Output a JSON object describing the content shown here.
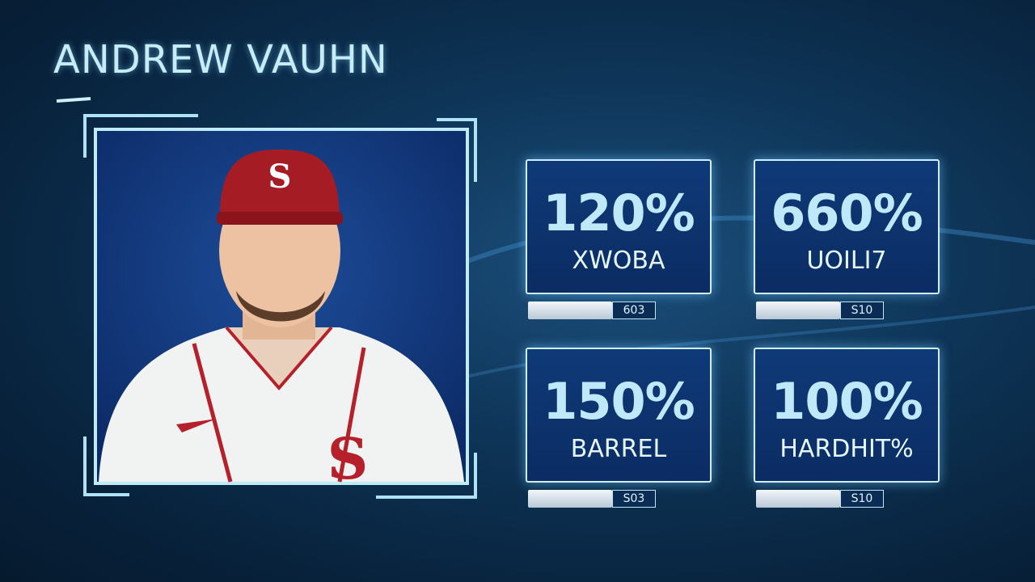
{
  "header": {
    "title": "ANDREW VAUHN"
  },
  "cards": [
    {
      "value": "120%",
      "label": "XWOBA",
      "footer": "603"
    },
    {
      "value": "660%",
      "label": "UOILI7",
      "footer": "S10"
    },
    {
      "value": "150%",
      "label": "BARREL",
      "footer": "S03"
    },
    {
      "value": "100%",
      "label": "HARDHIT%",
      "footer": "S10"
    }
  ]
}
